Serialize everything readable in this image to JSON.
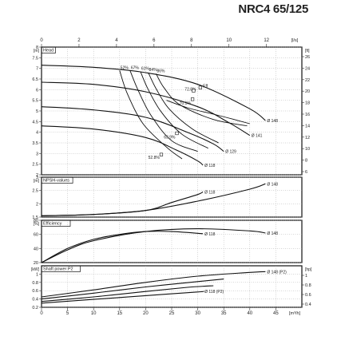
{
  "title": "NRC4 65/125",
  "axes": {
    "top_unit": "[l/s]",
    "top_ticks": [
      "0",
      "2",
      "4",
      "6",
      "8",
      "10",
      "12"
    ],
    "bottom_unit": "[m³/h]",
    "bottom_ticks": [
      "0",
      "5",
      "10",
      "15",
      "20",
      "25",
      "30",
      "35",
      "40",
      "45"
    ]
  },
  "chart_data": [
    {
      "type": "line",
      "panel": "head",
      "title": "Head",
      "ylabel": "[m]",
      "ylim": [
        2,
        8
      ],
      "left_ticks": [
        "8",
        "7.5",
        "7",
        "6.5",
        "6",
        "5.5",
        "5",
        "4.5",
        "4",
        "3.5",
        "3",
        "2.5",
        "2"
      ],
      "right_unit": "[ft]",
      "right_ticks": [
        "26",
        "24",
        "22",
        "20",
        "18",
        "16",
        "14",
        "12",
        "10",
        "8",
        "6"
      ],
      "xlim_m3h": [
        0,
        50
      ],
      "series": [
        {
          "name": "Ø 148",
          "x": [
            0,
            10,
            20,
            30,
            40,
            43
          ],
          "y": [
            7.15,
            7.05,
            6.8,
            6.25,
            5.1,
            4.55
          ]
        },
        {
          "name": "Ø 141",
          "x": [
            0,
            10,
            20,
            30,
            36,
            40
          ],
          "y": [
            6.35,
            6.25,
            5.9,
            5.2,
            4.45,
            3.85
          ]
        },
        {
          "name": "Ø 129",
          "x": [
            0,
            10,
            20,
            28,
            33,
            35
          ],
          "y": [
            5.2,
            5.05,
            4.7,
            4.0,
            3.45,
            3.1
          ]
        },
        {
          "name": "Ø 118",
          "x": [
            0,
            10,
            20,
            26,
            30,
            31
          ],
          "y": [
            4.3,
            4.15,
            3.75,
            3.15,
            2.65,
            2.45
          ]
        }
      ],
      "efficiency_curves": [
        {
          "label": "52%",
          "x": [
            15,
            16.5,
            19.5,
            24,
            27
          ],
          "y": [
            6.9,
            5.8,
            4.4,
            3.3,
            2.75
          ]
        },
        {
          "label": "67%",
          "x": [
            17,
            18.5,
            21,
            25,
            30
          ],
          "y": [
            6.9,
            6.0,
            4.8,
            3.6,
            3.1
          ]
        },
        {
          "label": "61%",
          "x": [
            19,
            20.5,
            23,
            27,
            32
          ],
          "y": [
            6.85,
            6.0,
            4.95,
            3.9,
            3.25
          ]
        },
        {
          "label": "84%",
          "x": [
            20.5,
            22,
            24.5,
            29,
            34
          ],
          "y": [
            6.8,
            6.05,
            5.1,
            4.15,
            3.5
          ]
        },
        {
          "label": "86%",
          "x": [
            22,
            23.5,
            26.5,
            33,
            39.5
          ],
          "y": [
            6.75,
            6.1,
            5.3,
            4.6,
            4.3
          ]
        }
      ],
      "annotations": [
        "52%",
        "67%",
        "61%",
        "84%",
        "86%",
        "72.8%",
        "Eff",
        "70.5%",
        "63.9%",
        "52.8%"
      ]
    },
    {
      "type": "line",
      "panel": "npsh",
      "title": "NPSH-values",
      "ylabel": "[m]",
      "ylim": [
        1.5,
        3
      ],
      "left_ticks": [
        "3",
        "2.5",
        "2",
        "1.5"
      ],
      "series": [
        {
          "name": "Ø 148",
          "x": [
            0,
            10,
            20,
            30,
            40,
            43
          ],
          "y": [
            1.55,
            1.6,
            1.75,
            2.1,
            2.55,
            2.75
          ]
        },
        {
          "name": "Ø 118",
          "x": [
            0,
            10,
            20,
            25,
            30,
            31
          ],
          "y": [
            1.55,
            1.6,
            1.75,
            2.05,
            2.35,
            2.45
          ]
        }
      ]
    },
    {
      "type": "line",
      "panel": "efficiency",
      "title": "Efficiency",
      "ylabel": "[%]",
      "ylim": [
        20,
        80
      ],
      "left_ticks": [
        "80",
        "60",
        "40",
        "20"
      ],
      "series": [
        {
          "name": "Ø 148",
          "x": [
            0,
            5,
            10,
            20,
            30,
            40,
            43
          ],
          "y": [
            20,
            38,
            51,
            64,
            68,
            65,
            62
          ]
        },
        {
          "name": "Ø 118",
          "x": [
            0,
            5,
            10,
            15,
            20,
            25,
            31
          ],
          "y": [
            20,
            40,
            53,
            60,
            64,
            64,
            61
          ]
        }
      ]
    },
    {
      "type": "line",
      "panel": "power",
      "title": "Shaft power P2",
      "ylabel": "[kW]",
      "ylim": [
        0.2,
        1.2
      ],
      "left_ticks": [
        "1",
        "0.8",
        "0.6",
        "0.4",
        "0.2"
      ],
      "right_unit": "[hp]",
      "right_ticks": [
        "1",
        "0.8",
        "0.6",
        "0.4"
      ],
      "series": [
        {
          "name": "Ø 148 (P2)",
          "x": [
            0,
            10,
            20,
            30,
            40,
            43
          ],
          "y": [
            0.45,
            0.62,
            0.8,
            0.95,
            1.04,
            1.06
          ]
        },
        {
          "name": "Ø 118 (P2)",
          "x": [
            0,
            10,
            20,
            30,
            31
          ],
          "y": [
            0.3,
            0.39,
            0.48,
            0.57,
            0.58
          ]
        },
        {
          "name": "",
          "x": [
            0,
            10,
            20,
            30,
            35
          ],
          "y": [
            0.4,
            0.54,
            0.69,
            0.82,
            0.88
          ]
        },
        {
          "name": "",
          "x": [
            0,
            10,
            20,
            28,
            33
          ],
          "y": [
            0.34,
            0.45,
            0.58,
            0.68,
            0.72
          ]
        }
      ]
    }
  ]
}
